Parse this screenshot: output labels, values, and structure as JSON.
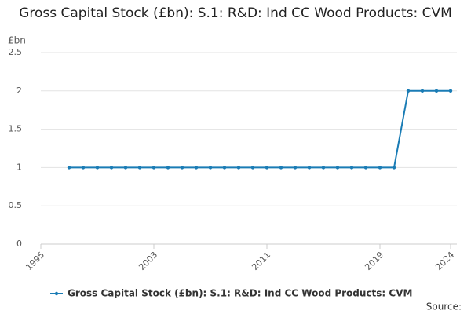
{
  "chart_data": {
    "type": "line",
    "title": "Gross Capital Stock (£bn): S.1: R&D: Ind CC Wood Products: CVM",
    "y_label": "£bn",
    "source": "Source:",
    "x": [
      1997,
      1998,
      1999,
      2000,
      2001,
      2002,
      2003,
      2004,
      2005,
      2006,
      2007,
      2008,
      2009,
      2010,
      2011,
      2012,
      2013,
      2014,
      2015,
      2016,
      2017,
      2018,
      2019,
      2020,
      2021,
      2022,
      2023,
      2024
    ],
    "series": [
      {
        "name": "Gross Capital Stock (£bn): S.1: R&D: Ind CC Wood Products: CVM",
        "color": "#1a7cb5",
        "values": [
          1,
          1,
          1,
          1,
          1,
          1,
          1,
          1,
          1,
          1,
          1,
          1,
          1,
          1,
          1,
          1,
          1,
          1,
          1,
          1,
          1,
          1,
          1,
          1,
          2,
          2,
          2,
          2
        ]
      }
    ],
    "xlim": [
      1995,
      2024
    ],
    "xticks": [
      1995,
      2003,
      2011,
      2019,
      2024
    ],
    "ylim": [
      0,
      2.5
    ],
    "yticks": [
      0,
      0.5,
      1,
      1.5,
      2,
      2.5
    ],
    "grid": true,
    "legend": "bottom"
  }
}
